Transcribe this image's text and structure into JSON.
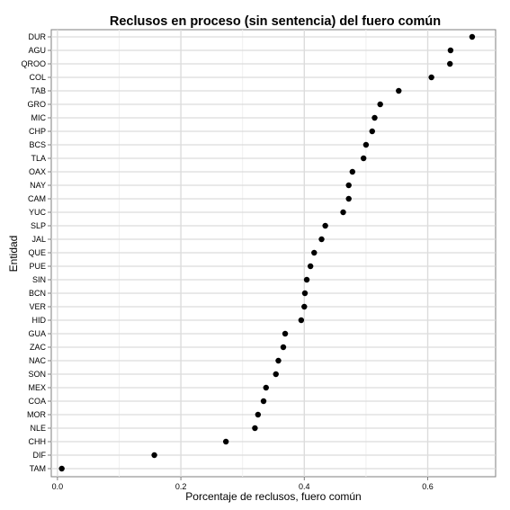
{
  "chart_data": {
    "type": "scatter",
    "title": "Reclusos en proceso  (sin sentencia) del fuero común",
    "xlabel": "Porcentaje de reclusos, fuero común",
    "ylabel": "Entidad",
    "xlim": [
      -0.01,
      0.71
    ],
    "x_ticks": [
      0.0,
      0.2,
      0.4,
      0.6
    ],
    "x_tick_labels": [
      "0.0",
      "0.2",
      "0.4",
      "0.6"
    ],
    "grid": true,
    "legend": "none",
    "colors": {
      "panel": "#ffffff",
      "grid_major": "#dcdcdc",
      "grid_minor": "#f0f0f0",
      "border": "#7f7f7f",
      "point": "#000000"
    },
    "categories": [
      "DUR",
      "AGU",
      "QROO",
      "COL",
      "TAB",
      "GRO",
      "MIC",
      "CHP",
      "BCS",
      "TLA",
      "OAX",
      "NAY",
      "CAM",
      "YUC",
      "SLP",
      "JAL",
      "QUE",
      "PUE",
      "SIN",
      "BCN",
      "VER",
      "HID",
      "GUA",
      "ZAC",
      "NAC",
      "SON",
      "MEX",
      "COA",
      "MOR",
      "NLE",
      "CHH",
      "DIF",
      "TAM"
    ],
    "values": [
      0.672,
      0.637,
      0.636,
      0.606,
      0.553,
      0.523,
      0.514,
      0.51,
      0.5,
      0.496,
      0.478,
      0.472,
      0.472,
      0.463,
      0.434,
      0.428,
      0.416,
      0.41,
      0.404,
      0.401,
      0.4,
      0.395,
      0.369,
      0.366,
      0.358,
      0.354,
      0.338,
      0.334,
      0.325,
      0.32,
      0.273,
      0.157,
      0.007
    ]
  }
}
